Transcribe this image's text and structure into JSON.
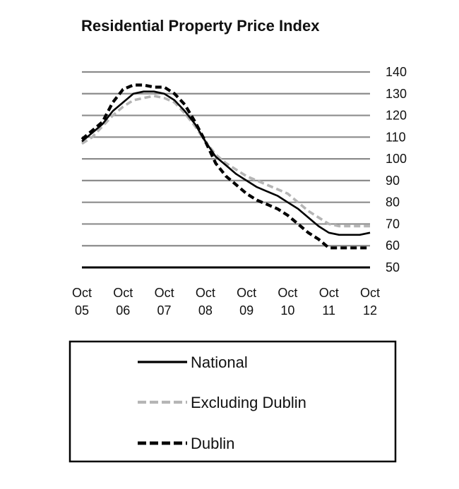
{
  "chart_data": {
    "type": "line",
    "title": "Residential Property Price Index",
    "xlabel": "",
    "ylabel": "",
    "ylim": [
      50,
      140
    ],
    "yticks": [
      140,
      130,
      120,
      110,
      100,
      90,
      80,
      70,
      60,
      50
    ],
    "xlim": [
      2005.75,
      2012.75
    ],
    "xticks": [
      {
        "value": 2005.75,
        "line1": "Oct",
        "line2": "05"
      },
      {
        "value": 2006.75,
        "line1": "Oct",
        "line2": "06"
      },
      {
        "value": 2007.75,
        "line1": "Oct",
        "line2": "07"
      },
      {
        "value": 2008.75,
        "line1": "Oct",
        "line2": "08"
      },
      {
        "value": 2009.75,
        "line1": "Oct",
        "line2": "09"
      },
      {
        "value": 2010.75,
        "line1": "Oct",
        "line2": "10"
      },
      {
        "value": 2011.75,
        "line1": "Oct",
        "line2": "11"
      },
      {
        "value": 2012.75,
        "line1": "Oct",
        "line2": "12"
      }
    ],
    "grid": true,
    "legend_position": "bottom",
    "series": [
      {
        "name": "National",
        "style": "solid",
        "color": "#000000",
        "points": [
          [
            2005.75,
            108
          ],
          [
            2006.0,
            112
          ],
          [
            2006.25,
            116
          ],
          [
            2006.5,
            122
          ],
          [
            2006.75,
            126
          ],
          [
            2007.0,
            130
          ],
          [
            2007.25,
            131
          ],
          [
            2007.5,
            131
          ],
          [
            2007.75,
            130
          ],
          [
            2008.0,
            127
          ],
          [
            2008.25,
            122
          ],
          [
            2008.5,
            116
          ],
          [
            2008.75,
            108
          ],
          [
            2009.0,
            101
          ],
          [
            2009.25,
            97
          ],
          [
            2009.5,
            93
          ],
          [
            2009.75,
            90
          ],
          [
            2010.0,
            87
          ],
          [
            2010.25,
            85
          ],
          [
            2010.5,
            83
          ],
          [
            2010.75,
            80
          ],
          [
            2011.0,
            77
          ],
          [
            2011.25,
            73
          ],
          [
            2011.5,
            69
          ],
          [
            2011.75,
            66
          ],
          [
            2012.0,
            65
          ],
          [
            2012.25,
            65
          ],
          [
            2012.5,
            65
          ],
          [
            2012.75,
            66
          ]
        ]
      },
      {
        "name": "Excluding Dublin",
        "style": "dashed",
        "color": "#b5b5b5",
        "points": [
          [
            2005.75,
            107
          ],
          [
            2006.0,
            110
          ],
          [
            2006.25,
            115
          ],
          [
            2006.5,
            120
          ],
          [
            2006.75,
            124
          ],
          [
            2007.0,
            127
          ],
          [
            2007.25,
            128
          ],
          [
            2007.5,
            129
          ],
          [
            2007.75,
            128
          ],
          [
            2008.0,
            126
          ],
          [
            2008.25,
            121
          ],
          [
            2008.5,
            115
          ],
          [
            2008.75,
            108
          ],
          [
            2009.0,
            102
          ],
          [
            2009.25,
            98
          ],
          [
            2009.5,
            95
          ],
          [
            2009.75,
            92
          ],
          [
            2010.0,
            90
          ],
          [
            2010.25,
            88
          ],
          [
            2010.5,
            86
          ],
          [
            2010.75,
            84
          ],
          [
            2011.0,
            80
          ],
          [
            2011.25,
            76
          ],
          [
            2011.5,
            73
          ],
          [
            2011.75,
            70
          ],
          [
            2012.0,
            69
          ],
          [
            2012.25,
            69
          ],
          [
            2012.5,
            69
          ],
          [
            2012.75,
            69
          ]
        ]
      },
      {
        "name": "Dublin",
        "style": "dashed",
        "color": "#000000",
        "points": [
          [
            2005.75,
            109
          ],
          [
            2006.0,
            113
          ],
          [
            2006.25,
            117
          ],
          [
            2006.5,
            126
          ],
          [
            2006.75,
            132
          ],
          [
            2007.0,
            134
          ],
          [
            2007.25,
            134
          ],
          [
            2007.5,
            133
          ],
          [
            2007.75,
            133
          ],
          [
            2008.0,
            130
          ],
          [
            2008.25,
            125
          ],
          [
            2008.5,
            117
          ],
          [
            2008.75,
            108
          ],
          [
            2009.0,
            98
          ],
          [
            2009.25,
            92
          ],
          [
            2009.5,
            88
          ],
          [
            2009.75,
            84
          ],
          [
            2010.0,
            81
          ],
          [
            2010.25,
            79
          ],
          [
            2010.5,
            77
          ],
          [
            2010.75,
            74
          ],
          [
            2011.0,
            70
          ],
          [
            2011.25,
            66
          ],
          [
            2011.5,
            63
          ],
          [
            2011.75,
            59
          ],
          [
            2012.0,
            59
          ],
          [
            2012.25,
            59
          ],
          [
            2012.5,
            59
          ],
          [
            2012.75,
            59
          ]
        ]
      }
    ]
  }
}
